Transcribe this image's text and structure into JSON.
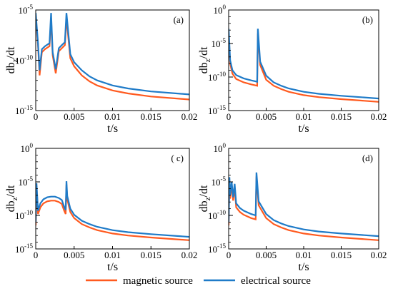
{
  "chart_data": [
    {
      "type": "line",
      "panel_label": "(a)",
      "xlabel": "t/s",
      "ylabel": "db_z/dt",
      "xlim": [
        0,
        0.02
      ],
      "ylim_log10": [
        -15,
        -5
      ],
      "y_scale": "log",
      "xticks": [
        "0",
        "0.005",
        "0.01",
        "0.015",
        "0.02"
      ],
      "yticks": [
        "10^-5",
        "10^-10",
        "10^-15"
      ],
      "series": [
        {
          "name": "magnetic source",
          "x": [
            0,
            0.0003,
            0.0005,
            0.0008,
            0.0012,
            0.0018,
            0.002,
            0.0022,
            0.0026,
            0.003,
            0.0034,
            0.0038,
            0.004,
            0.0045,
            0.005,
            0.006,
            0.007,
            0.008,
            0.01,
            0.012,
            0.015,
            0.02
          ],
          "y_log10": [
            -5.8,
            -8.5,
            -11.5,
            -9.2,
            -8.9,
            -8.6,
            -5.8,
            -9.5,
            -11.3,
            -9.1,
            -8.8,
            -8.5,
            -5.8,
            -9.8,
            -10.6,
            -11.5,
            -12.1,
            -12.5,
            -13.0,
            -13.3,
            -13.6,
            -13.9
          ]
        },
        {
          "name": "electrical source",
          "x": [
            0,
            0.0003,
            0.0005,
            0.0008,
            0.0012,
            0.0018,
            0.002,
            0.0022,
            0.0026,
            0.003,
            0.0034,
            0.0038,
            0.004,
            0.0045,
            0.005,
            0.006,
            0.007,
            0.008,
            0.01,
            0.012,
            0.015,
            0.02
          ],
          "y_log10": [
            -5.3,
            -8.3,
            -11.0,
            -8.9,
            -8.6,
            -8.3,
            -5.3,
            -9.2,
            -10.9,
            -8.8,
            -8.5,
            -8.2,
            -5.3,
            -9.4,
            -10.2,
            -11.0,
            -11.6,
            -12.0,
            -12.5,
            -12.8,
            -13.1,
            -13.4
          ]
        }
      ]
    },
    {
      "type": "line",
      "panel_label": "(b)",
      "xlabel": "t/s",
      "ylabel": "db_z/dt",
      "xlim": [
        0,
        0.02
      ],
      "ylim_log10": [
        -15,
        0
      ],
      "y_scale": "log",
      "xticks": [
        "0",
        "0.005",
        "0.01",
        "0.015",
        "0.02"
      ],
      "yticks": [
        "10^0",
        "10^-5",
        "10^-10",
        "10^-15"
      ],
      "series": [
        {
          "name": "magnetic source",
          "x": [
            0,
            0.0002,
            0.0005,
            0.001,
            0.002,
            0.003,
            0.0038,
            0.0039,
            0.0042,
            0.005,
            0.006,
            0.007,
            0.008,
            0.01,
            0.012,
            0.015,
            0.02
          ],
          "y_log10": [
            -3.5,
            -8.0,
            -9.5,
            -10.3,
            -10.8,
            -11.1,
            -11.3,
            -3.5,
            -8.2,
            -10.4,
            -11.3,
            -11.8,
            -12.2,
            -12.7,
            -13.0,
            -13.3,
            -13.7
          ]
        },
        {
          "name": "electrical source",
          "x": [
            0,
            0.0002,
            0.0005,
            0.001,
            0.002,
            0.003,
            0.0038,
            0.0039,
            0.0042,
            0.005,
            0.006,
            0.007,
            0.008,
            0.01,
            0.012,
            0.015,
            0.02
          ],
          "y_log10": [
            -2.8,
            -7.5,
            -9.0,
            -9.7,
            -10.2,
            -10.5,
            -10.7,
            -2.8,
            -7.7,
            -9.8,
            -10.8,
            -11.3,
            -11.7,
            -12.2,
            -12.5,
            -12.8,
            -13.2
          ]
        }
      ]
    },
    {
      "type": "line",
      "panel_label": "( c)",
      "xlabel": "t/s",
      "ylabel": "db_z/dt",
      "xlim": [
        0,
        0.02
      ],
      "ylim_log10": [
        -15,
        0
      ],
      "y_scale": "log",
      "xticks": [
        "0",
        "0.005",
        "0.01",
        "0.015",
        "0.02"
      ],
      "yticks": [
        "10^0",
        "10^-5",
        "10^-10",
        "10^-15"
      ],
      "series": [
        {
          "name": "magnetic source",
          "x": [
            0,
            0.0001,
            0.0003,
            0.0006,
            0.001,
            0.0015,
            0.002,
            0.0025,
            0.003,
            0.0034,
            0.0037,
            0.0039,
            0.004,
            0.0041,
            0.0045,
            0.005,
            0.006,
            0.007,
            0.008,
            0.01,
            0.012,
            0.015,
            0.02
          ],
          "y_log10": [
            -11.5,
            -5.6,
            -9.8,
            -8.8,
            -8.2,
            -7.9,
            -7.8,
            -7.8,
            -8.0,
            -8.3,
            -9.3,
            -9.8,
            -5.4,
            -7.6,
            -9.5,
            -10.4,
            -11.3,
            -11.8,
            -12.2,
            -12.7,
            -13.0,
            -13.3,
            -13.7
          ]
        },
        {
          "name": "electrical source",
          "x": [
            0,
            0.0001,
            0.0003,
            0.0006,
            0.001,
            0.0015,
            0.002,
            0.0025,
            0.003,
            0.0034,
            0.0037,
            0.0039,
            0.004,
            0.0041,
            0.0045,
            0.005,
            0.006,
            0.007,
            0.008,
            0.01,
            0.012,
            0.015,
            0.02
          ],
          "y_log10": [
            -11.0,
            -5.2,
            -9.3,
            -8.2,
            -7.6,
            -7.3,
            -7.2,
            -7.2,
            -7.4,
            -7.7,
            -8.7,
            -9.2,
            -4.9,
            -7.1,
            -9.0,
            -9.9,
            -10.8,
            -11.3,
            -11.7,
            -12.2,
            -12.5,
            -12.8,
            -13.2
          ]
        }
      ]
    },
    {
      "type": "line",
      "panel_label": "(d)",
      "xlabel": "t/s",
      "ylabel": "db_z/dt",
      "xlim": [
        0,
        0.02
      ],
      "ylim_log10": [
        -15,
        0
      ],
      "y_scale": "log",
      "xticks": [
        "0",
        "0.005",
        "0.01",
        "0.015",
        "0.02"
      ],
      "yticks": [
        "10^0",
        "10^-5",
        "10^-10",
        "10^-15"
      ],
      "series": [
        {
          "name": "magnetic source",
          "x": [
            0,
            0.0001,
            0.0002,
            0.0004,
            0.0006,
            0.0008,
            0.001,
            0.0015,
            0.002,
            0.003,
            0.0036,
            0.0037,
            0.004,
            0.005,
            0.006,
            0.007,
            0.008,
            0.01,
            0.012,
            0.015,
            0.02
          ],
          "y_log10": [
            -11.5,
            -4.8,
            -7.5,
            -5.5,
            -7.8,
            -5.8,
            -8.8,
            -9.5,
            -9.9,
            -10.4,
            -10.6,
            -4.2,
            -8.5,
            -10.4,
            -11.3,
            -11.8,
            -12.2,
            -12.7,
            -13.0,
            -13.3,
            -13.7
          ]
        },
        {
          "name": "electrical source",
          "x": [
            0,
            0.0001,
            0.0002,
            0.0004,
            0.0006,
            0.0008,
            0.001,
            0.0015,
            0.002,
            0.003,
            0.0036,
            0.0037,
            0.004,
            0.005,
            0.006,
            0.007,
            0.008,
            0.01,
            0.012,
            0.015,
            0.02
          ],
          "y_log10": [
            -11.0,
            -4.3,
            -7.0,
            -5.0,
            -7.3,
            -5.3,
            -8.2,
            -8.9,
            -9.3,
            -9.8,
            -10.0,
            -3.6,
            -7.9,
            -9.8,
            -10.7,
            -11.2,
            -11.6,
            -12.1,
            -12.4,
            -12.7,
            -13.1
          ]
        }
      ]
    }
  ],
  "legend": {
    "items": [
      {
        "label": "magnetic source",
        "color": "#ff5a1f"
      },
      {
        "label": "electrical source",
        "color": "#1f7bc8"
      }
    ]
  },
  "colors": {
    "magnetic": "#ff5a1f",
    "electrical": "#1f7bc8",
    "axis": "#000000"
  }
}
